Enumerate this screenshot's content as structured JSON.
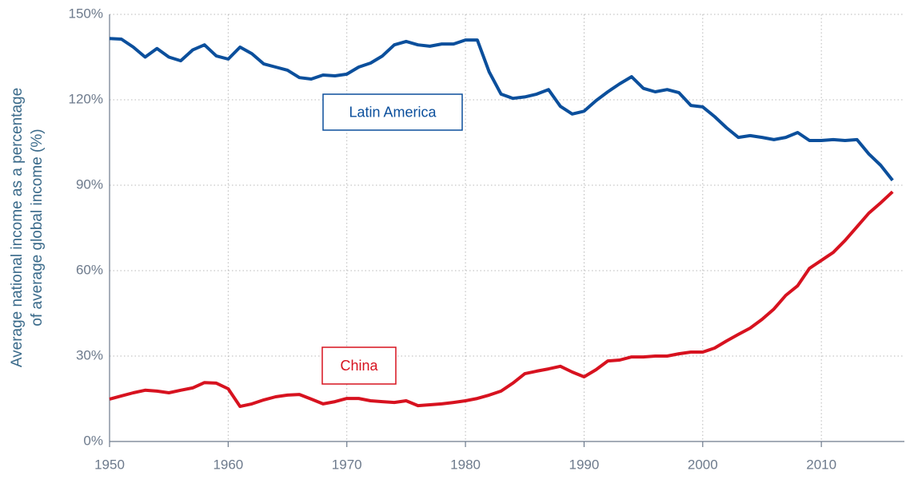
{
  "chart_data": {
    "type": "line",
    "ylabel": [
      "Average national income as a percentage",
      "of average global income (%)"
    ],
    "x": [
      1950,
      1951,
      1952,
      1953,
      1954,
      1955,
      1956,
      1957,
      1958,
      1959,
      1960,
      1961,
      1962,
      1963,
      1964,
      1965,
      1966,
      1967,
      1968,
      1969,
      1970,
      1971,
      1972,
      1973,
      1974,
      1975,
      1976,
      1977,
      1978,
      1979,
      1980,
      1981,
      1982,
      1983,
      1984,
      1985,
      1986,
      1987,
      1988,
      1989,
      1990,
      1991,
      1992,
      1993,
      1994,
      1995,
      1996,
      1997,
      1998,
      1999,
      2000,
      2001,
      2002,
      2003,
      2004,
      2005,
      2006,
      2007,
      2008,
      2009,
      2010,
      2011,
      2012,
      2013,
      2014,
      2015,
      2016
    ],
    "series": [
      {
        "name": "Latin America",
        "color": "#0b4f9c",
        "values": [
          141.5,
          141.3,
          138.5,
          135,
          138,
          135,
          133.7,
          137.5,
          139.3,
          135.4,
          134.3,
          138.5,
          136.2,
          132.6,
          131.5,
          130.4,
          127.8,
          127.3,
          128.7,
          128.4,
          129,
          131.5,
          132.9,
          135.4,
          139.3,
          140.5,
          139.3,
          138.8,
          139.6,
          139.6,
          141,
          141,
          129.8,
          122,
          120.5,
          121,
          122,
          123.6,
          117.7,
          115,
          116,
          119.7,
          122.8,
          125.6,
          128.1,
          124,
          122.8,
          123.6,
          122.5,
          118,
          117.5,
          114.1,
          110.2,
          106.8,
          107.4,
          106.8,
          106,
          106.8,
          108.5,
          105.7,
          105.7,
          106,
          105.7,
          106,
          101,
          97,
          91.7
        ]
      },
      {
        "name": "China",
        "color": "#d7121f",
        "values": [
          14.9,
          16,
          17.1,
          18,
          17.7,
          17.1,
          18,
          18.8,
          20.7,
          20.5,
          18.5,
          12.3,
          13.2,
          14.6,
          15.7,
          16.3,
          16.5,
          14.9,
          13.2,
          14,
          15.1,
          15.1,
          14.3,
          14,
          13.7,
          14.3,
          12.6,
          12.9,
          13.2,
          13.7,
          14.3,
          15.1,
          16.3,
          17.7,
          20.5,
          23.8,
          24.7,
          25.5,
          26.4,
          24.4,
          22.7,
          25.2,
          28.3,
          28.6,
          29.7,
          29.7,
          30,
          30,
          30.8,
          31.4,
          31.4,
          32.8,
          35.3,
          37.6,
          39.8,
          42.9,
          46.5,
          51.3,
          54.7,
          60.8,
          63.6,
          66.4,
          70.6,
          75.4,
          80.2,
          83.8,
          87.7
        ]
      }
    ],
    "xlim": [
      1950,
      2017
    ],
    "xticks": [
      1950,
      1960,
      1970,
      1980,
      1990,
      2000,
      2010
    ],
    "ylim": [
      0,
      150
    ],
    "yticks": [
      {
        "value": 0,
        "label": "0%"
      },
      {
        "value": 30,
        "label": "30%"
      },
      {
        "value": 60,
        "label": "60%"
      },
      {
        "value": 90,
        "label": "90%"
      },
      {
        "value": 120,
        "label": "120%"
      },
      {
        "value": 150,
        "label": "150%"
      }
    ],
    "grid": true
  }
}
